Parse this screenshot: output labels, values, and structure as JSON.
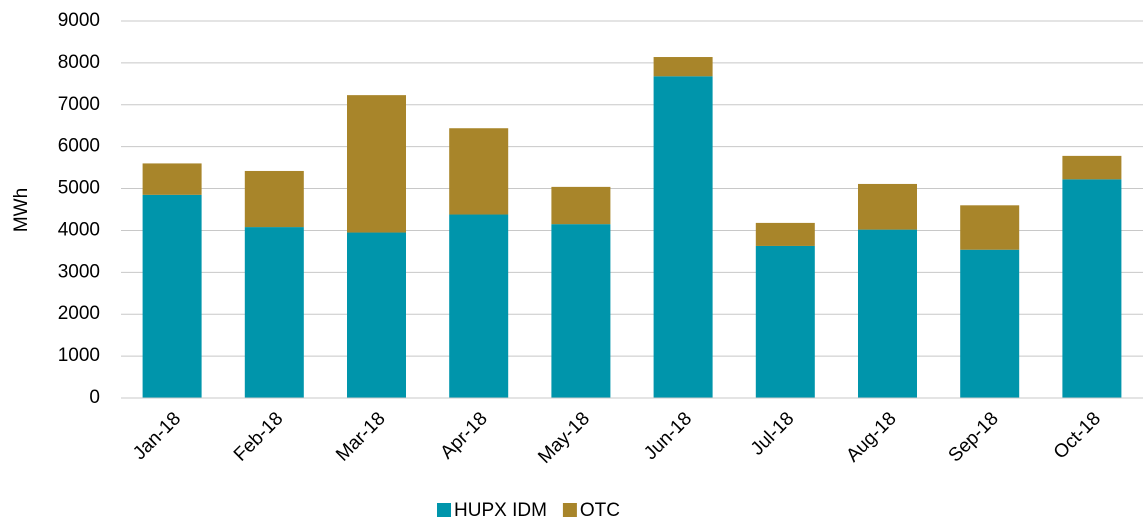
{
  "chart_data": {
    "type": "stacked_bar",
    "y_label": "MWh",
    "categories": [
      "Jan-18",
      "Feb-18",
      "Mar-18",
      "Apr-18",
      "May-18",
      "Jun-18",
      "Jul-18",
      "Aug-18",
      "Sep-18",
      "Oct-18"
    ],
    "series": [
      {
        "name": "HUPX IDM",
        "color": "#0095ab",
        "values": [
          4850,
          4080,
          3950,
          4380,
          4150,
          7680,
          3630,
          4020,
          3540,
          5220
        ]
      },
      {
        "name": "OTC",
        "color": "#a8852a",
        "values": [
          750,
          1340,
          3280,
          2060,
          890,
          460,
          550,
          1090,
          1060,
          560
        ]
      }
    ],
    "ylim": [
      0,
      9000
    ],
    "yticks": [
      0,
      1000,
      2000,
      3000,
      4000,
      5000,
      6000,
      7000,
      8000,
      9000
    ],
    "grid": true,
    "legend": "bottom"
  }
}
